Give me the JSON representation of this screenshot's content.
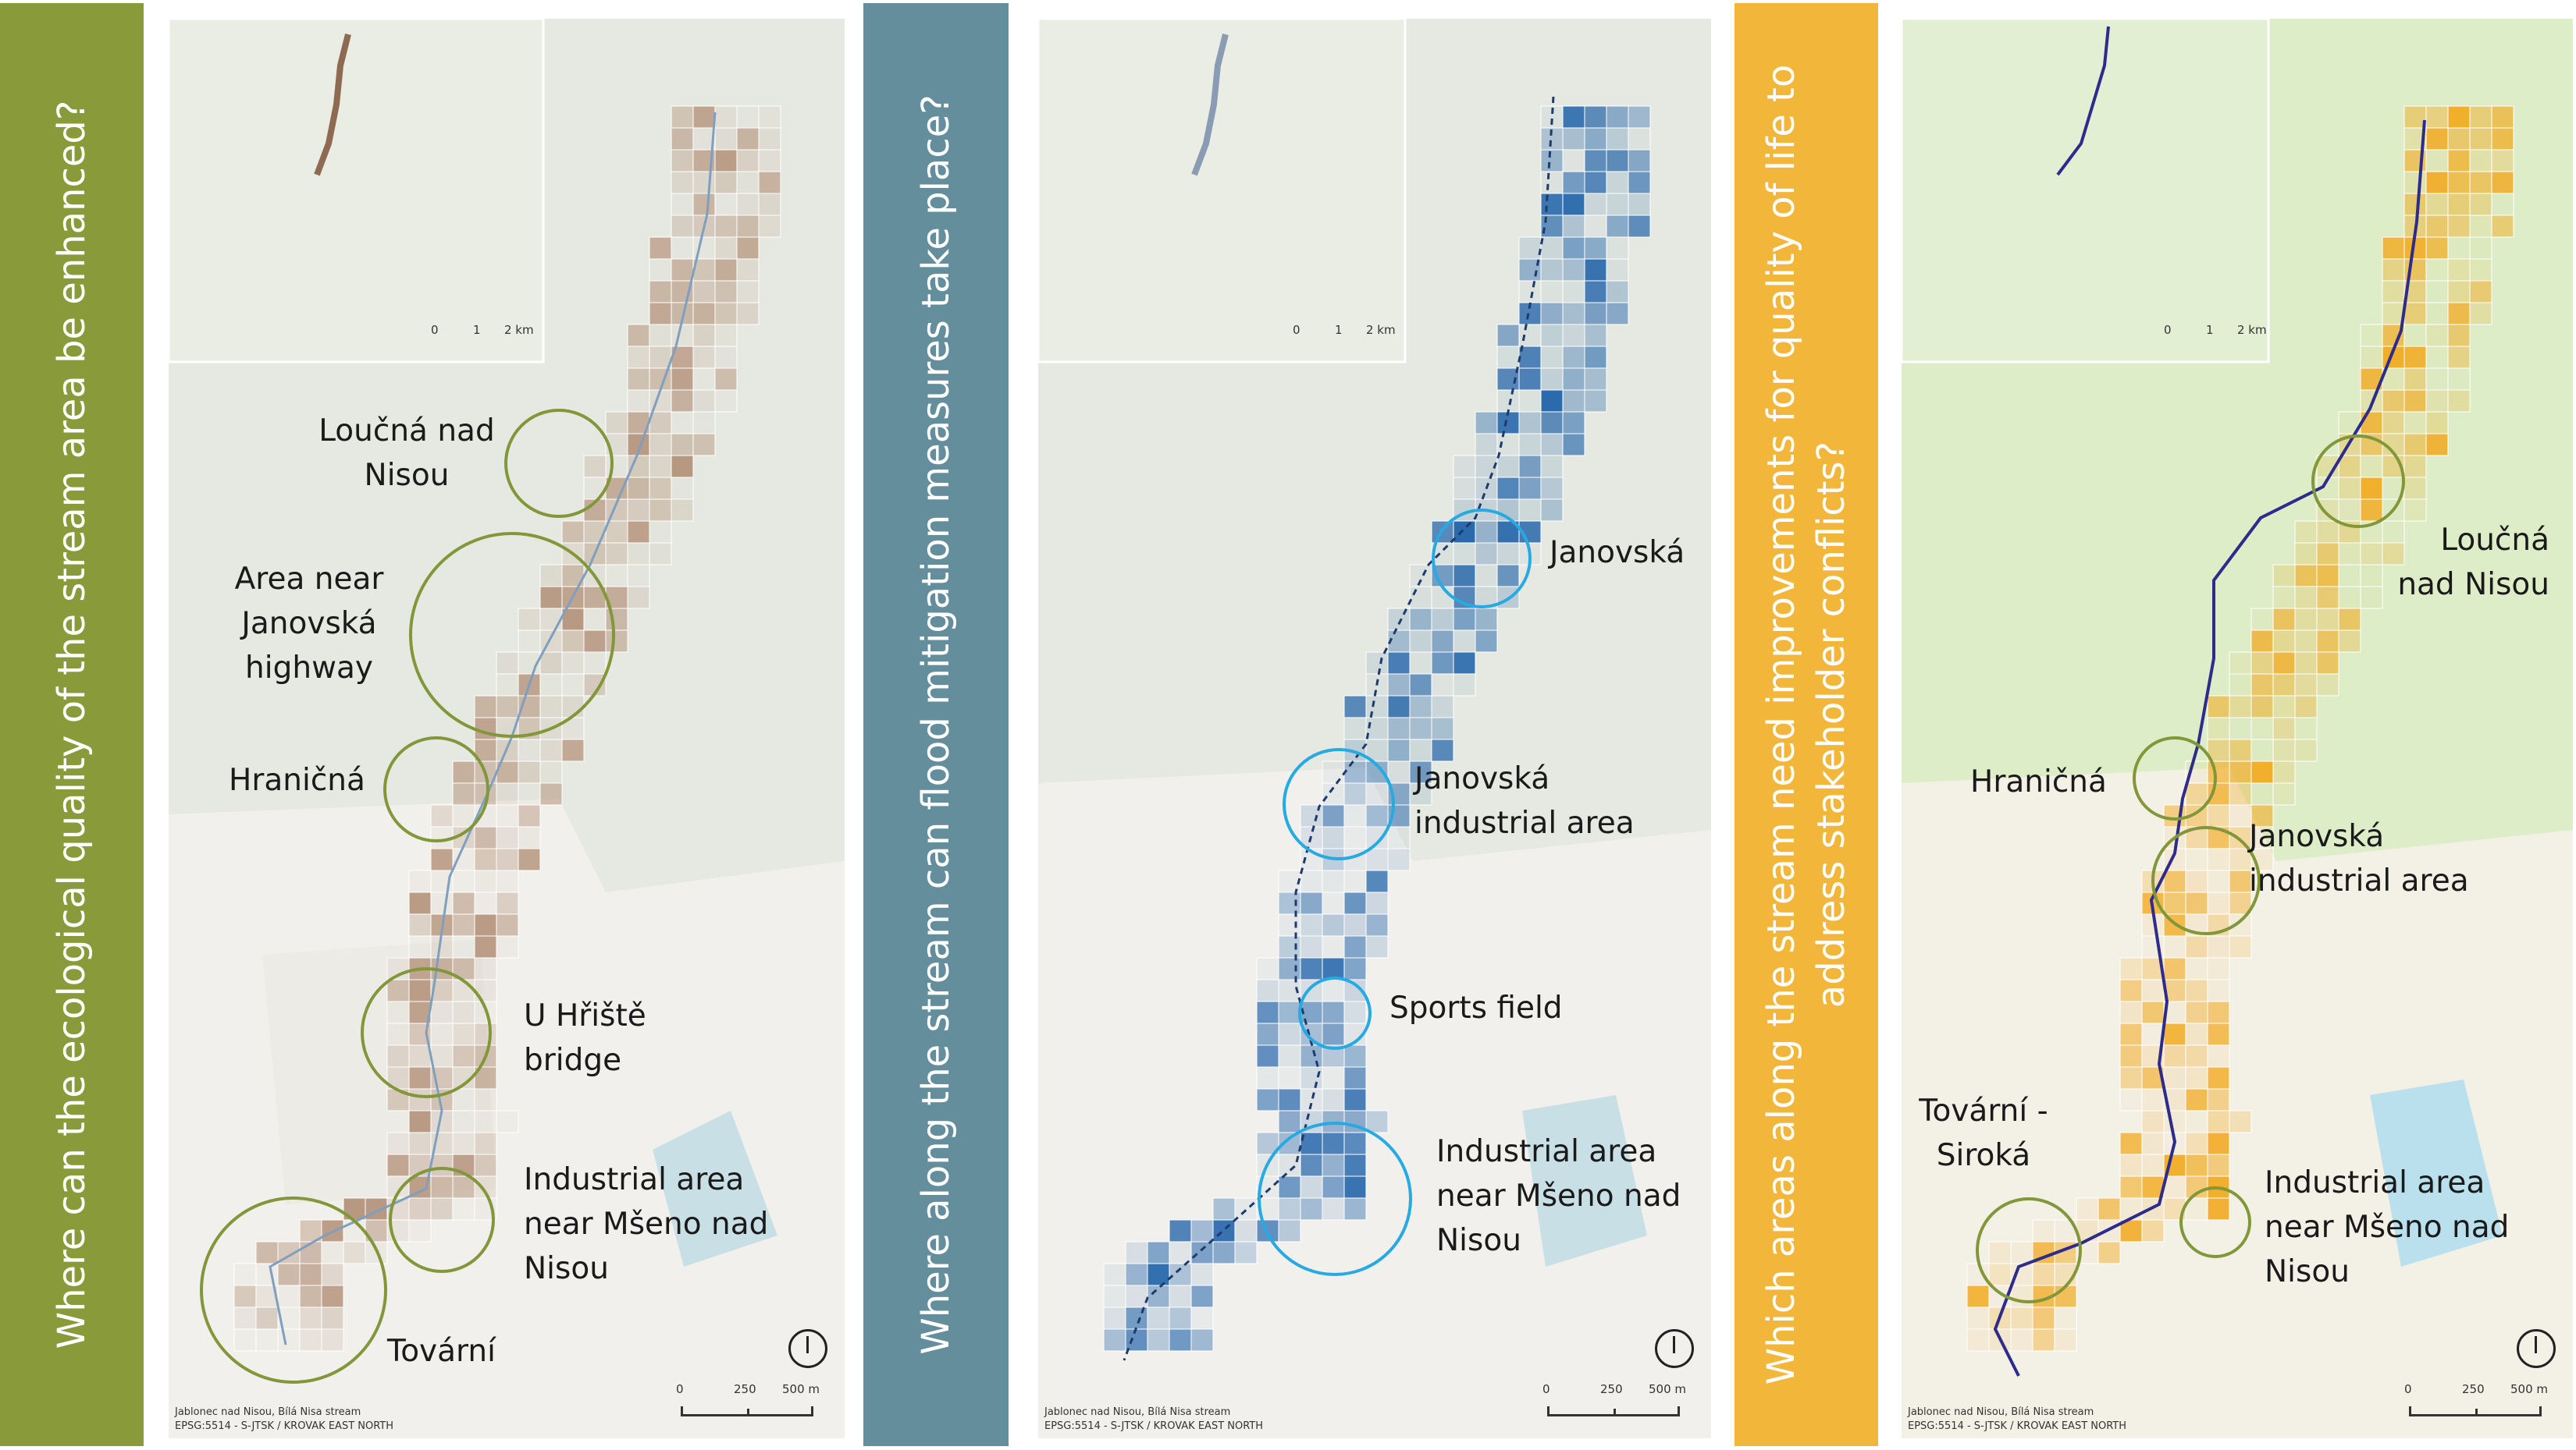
{
  "colors": {
    "green_bar": "#899a3a",
    "blue_bar": "#658e9c",
    "yellow_bar": "#f2b73a",
    "circle_green": "#82973a",
    "circle_blue": "#27aae1",
    "ecological_cells": "#b39179",
    "flood_cells": "#1b5fa8",
    "quality_cells": "#f2a91d",
    "stream_line": "#2d2b8c"
  },
  "questions": {
    "ecological": "Where can the ecological quality of the stream area be enhanced?",
    "flood": "Where along the stream can flood mitigation measures take place?",
    "quality": "Which areas along the stream need improvements for quality of life to address stakeholder conflicts?"
  },
  "map1": {
    "labels": {
      "loucna": "Loučná nad Nisou",
      "janovska_highway": "Area near Janovská highway",
      "hranicna": "Hraničná",
      "hriste": "U Hřiště bridge",
      "industrial": "Industrial area near Mšeno nad Nisou",
      "tovarni": "Tovární"
    }
  },
  "map2": {
    "labels": {
      "janovska": "Janovská",
      "janovska_industrial": "Janovská industrial area",
      "sports": "Sports field",
      "industrial": "Industrial area near Mšeno nad Nisou"
    }
  },
  "map3": {
    "labels": {
      "loucna": "Loučná nad Nisou",
      "hranicna": "Hraničná",
      "janovska_industrial": "Janovská industrial area",
      "tovarni": "Tovární - Siroká",
      "industrial": "Industrial area near Mšeno nad Nisou"
    }
  },
  "inset_scale": {
    "t0": "0",
    "t1": "1",
    "t2": "2 km"
  },
  "main_scale": {
    "t0": "0",
    "t1": "250",
    "t2": "500 m"
  },
  "footer": {
    "line1": "Jablonec nad Nisou, Bílá Nisa stream",
    "line2": "EPSG:5514 - S-JTSK / KROVAK EAST NORTH"
  }
}
